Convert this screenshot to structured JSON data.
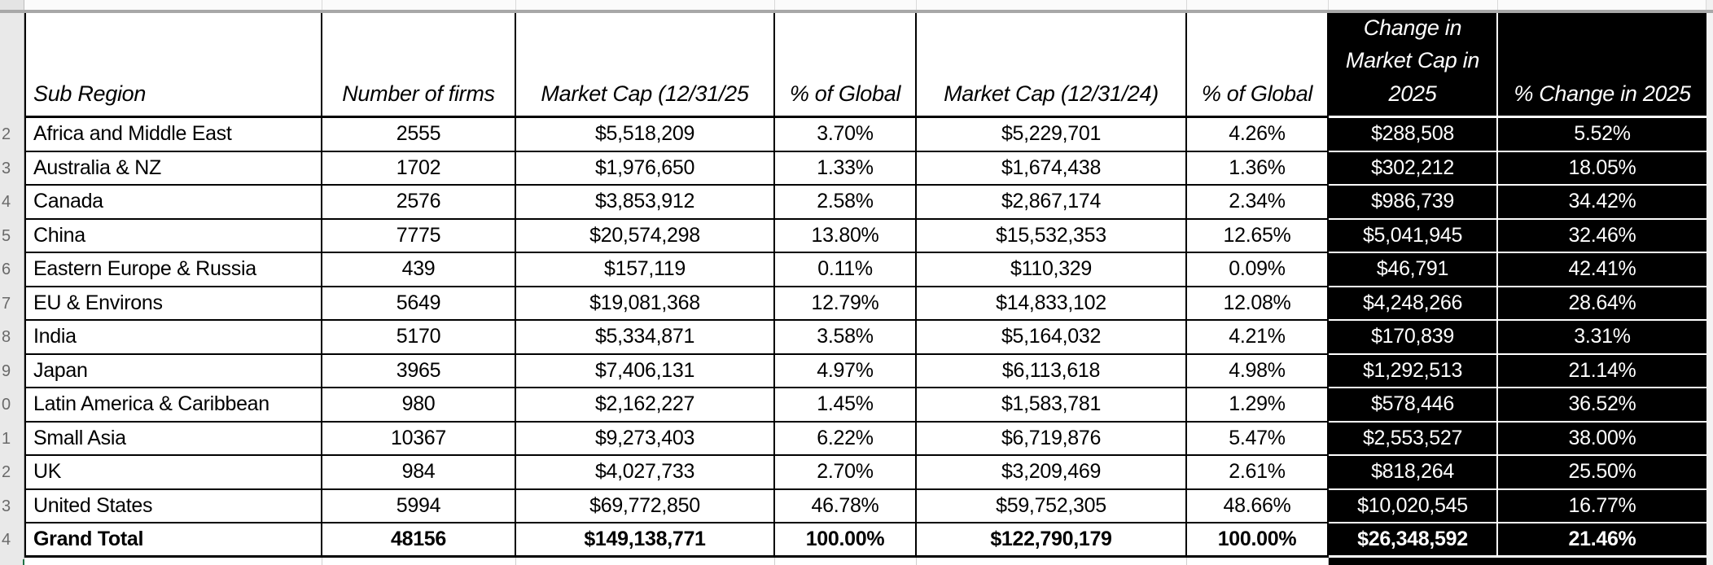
{
  "sheet": {
    "row_numbers_visible": [
      "",
      "2",
      "3",
      "4",
      "5",
      "6",
      "7",
      "8",
      "9",
      "0",
      "1",
      "2",
      "3",
      "4"
    ]
  },
  "table": {
    "headers": [
      "Sub Region",
      "Number of firms",
      "Market Cap (12/31/25",
      "% of Global",
      "Market Cap (12/31/24)",
      "% of Global",
      "Change in\nMarket Cap in\n2025",
      "% Change in 2025"
    ],
    "rows": [
      {
        "region": "Africa and Middle East",
        "firms": "2555",
        "mcap_25": "$5,518,209",
        "pct_25": "3.70%",
        "mcap_24": "$5,229,701",
        "pct_24": "4.26%",
        "change": "$288,508",
        "pct_change": "5.52%"
      },
      {
        "region": "Australia & NZ",
        "firms": "1702",
        "mcap_25": "$1,976,650",
        "pct_25": "1.33%",
        "mcap_24": "$1,674,438",
        "pct_24": "1.36%",
        "change": "$302,212",
        "pct_change": "18.05%"
      },
      {
        "region": "Canada",
        "firms": "2576",
        "mcap_25": "$3,853,912",
        "pct_25": "2.58%",
        "mcap_24": "$2,867,174",
        "pct_24": "2.34%",
        "change": "$986,739",
        "pct_change": "34.42%"
      },
      {
        "region": "China",
        "firms": "7775",
        "mcap_25": "$20,574,298",
        "pct_25": "13.80%",
        "mcap_24": "$15,532,353",
        "pct_24": "12.65%",
        "change": "$5,041,945",
        "pct_change": "32.46%"
      },
      {
        "region": "Eastern Europe & Russia",
        "firms": "439",
        "mcap_25": "$157,119",
        "pct_25": "0.11%",
        "mcap_24": "$110,329",
        "pct_24": "0.09%",
        "change": "$46,791",
        "pct_change": "42.41%"
      },
      {
        "region": "EU & Environs",
        "firms": "5649",
        "mcap_25": "$19,081,368",
        "pct_25": "12.79%",
        "mcap_24": "$14,833,102",
        "pct_24": "12.08%",
        "change": "$4,248,266",
        "pct_change": "28.64%"
      },
      {
        "region": "India",
        "firms": "5170",
        "mcap_25": "$5,334,871",
        "pct_25": "3.58%",
        "mcap_24": "$5,164,032",
        "pct_24": "4.21%",
        "change": "$170,839",
        "pct_change": "3.31%"
      },
      {
        "region": "Japan",
        "firms": "3965",
        "mcap_25": "$7,406,131",
        "pct_25": "4.97%",
        "mcap_24": "$6,113,618",
        "pct_24": "4.98%",
        "change": "$1,292,513",
        "pct_change": "21.14%"
      },
      {
        "region": "Latin America & Caribbean",
        "firms": "980",
        "mcap_25": "$2,162,227",
        "pct_25": "1.45%",
        "mcap_24": "$1,583,781",
        "pct_24": "1.29%",
        "change": "$578,446",
        "pct_change": "36.52%"
      },
      {
        "region": "Small Asia",
        "firms": "10367",
        "mcap_25": "$9,273,403",
        "pct_25": "6.22%",
        "mcap_24": "$6,719,876",
        "pct_24": "5.47%",
        "change": "$2,553,527",
        "pct_change": "38.00%"
      },
      {
        "region": "UK",
        "firms": "984",
        "mcap_25": "$4,027,733",
        "pct_25": "2.70%",
        "mcap_24": "$3,209,469",
        "pct_24": "2.61%",
        "change": "$818,264",
        "pct_change": "25.50%"
      },
      {
        "region": "United States",
        "firms": "5994",
        "mcap_25": "$69,772,850",
        "pct_25": "46.78%",
        "mcap_24": "$59,752,305",
        "pct_24": "48.66%",
        "change": "$10,020,545",
        "pct_change": "16.77%"
      }
    ],
    "grand_total": {
      "region": "Grand Total",
      "firms": "48156",
      "mcap_25": "$149,138,771",
      "pct_25": "100.00%",
      "mcap_24": "$122,790,179",
      "pct_24": "100.00%",
      "change": "$26,348,592",
      "pct_change": "21.46%"
    }
  },
  "colors": {
    "highlight_column_bg": "#000000",
    "highlight_column_text": "#ffffff",
    "grid_border": "#000000",
    "gutter_bg": "#e9e9e9",
    "pane_divider": "#a8a8a8",
    "selection_green": "#217346"
  }
}
